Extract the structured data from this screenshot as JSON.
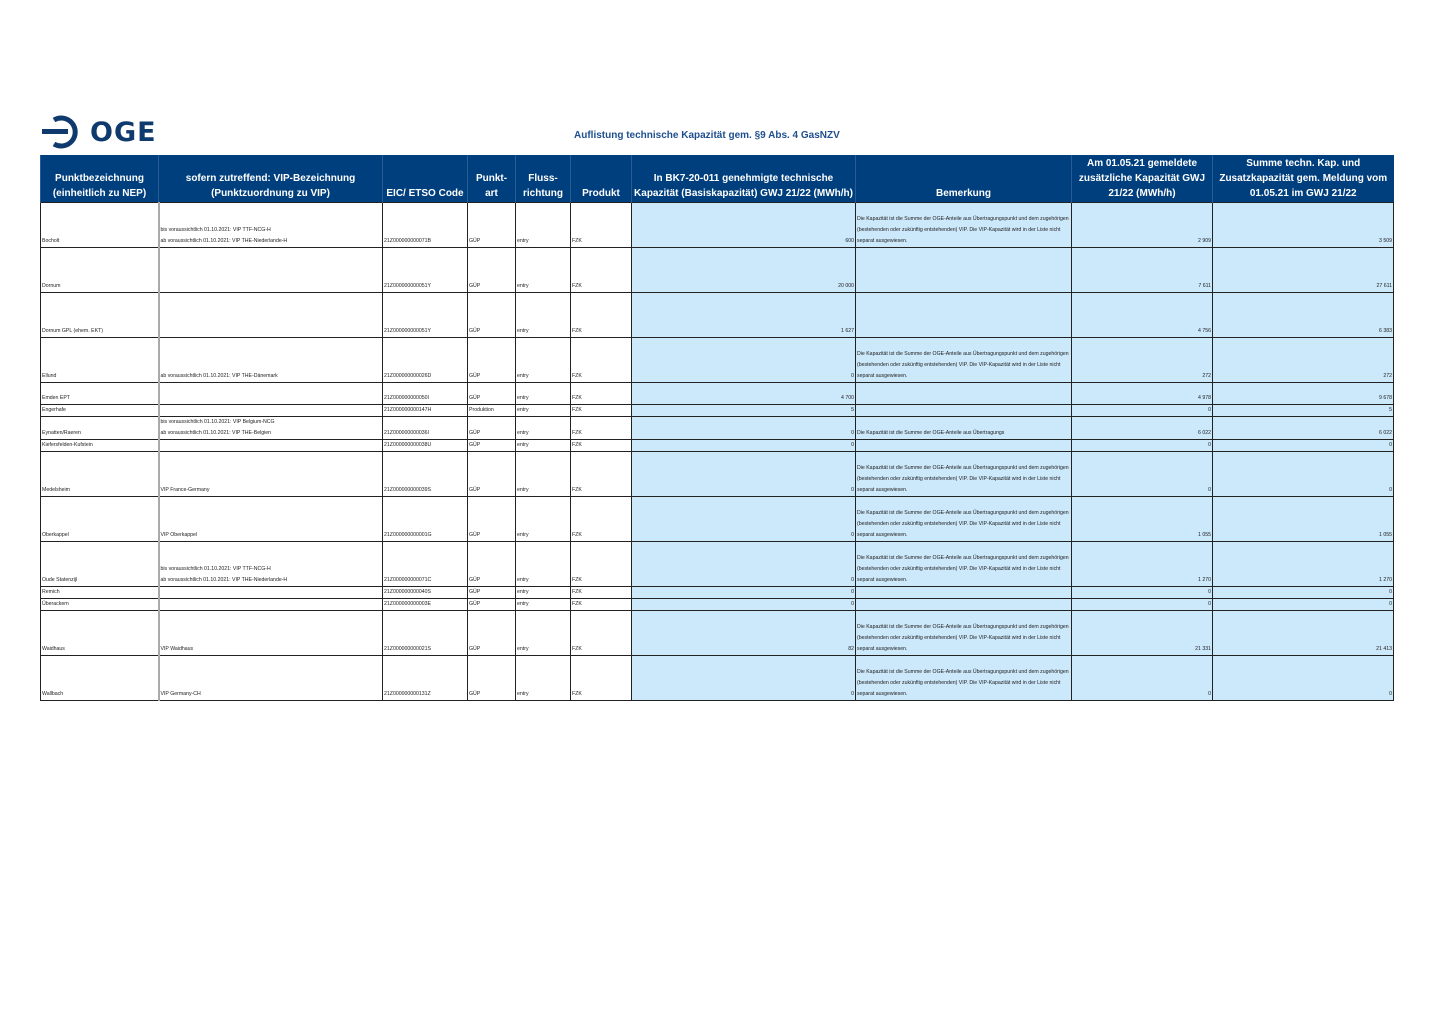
{
  "header": {
    "logo": "OGE",
    "title": "Auflistung technische Kapazität gem. §9 Abs. 4 GasNZV"
  },
  "columns": [
    "Punktbezeichnung (einheitlich zu NEP)",
    "sofern zutreffend: VIP-Bezeichnung (Punktzuordnung zu VIP)",
    "EIC/ ETSO Code",
    "Punkt-art",
    "Fluss-richtung",
    "Produkt",
    "In BK7-20-011 genehmigte technische Kapazität (Basiskapazität) GWJ 21/22 (MWh/h)",
    "Bemerkung",
    "Am 01.05.21 gemeldete zusätzliche Kapazität GWJ 21/22 (MWh/h)",
    "Summe techn. Kap. und Zusatzkapazität gem. Meldung vom 01.05.21 im GWJ 21/22"
  ],
  "remark_full": "Die Kapazität ist die Summe der OGE-Anteile aus Übertragungspunkt und dem zugehörigen (bestehenden oder zukünftig entstehenden) VIP. Die VIP-Kapazität wird in der Liste nicht separat ausgewiesen.",
  "remark_short": "Die Kapazität ist die Summe der OGE-Anteile aus Übertragungs",
  "rows": [
    {
      "name": "Bocholt",
      "vip": "bis voraussichtlich 01.10.2021: VIP TTF-NCG-H\nab voraussichtlich 01.10.2021: VIP THE-Niederlande-H",
      "eic": "21Z000000000071B",
      "art": "GÜP",
      "dir": "entry",
      "prod": "FZK",
      "base": "600",
      "remark": "full",
      "add": "2 909",
      "sum": "3 509",
      "h": 45
    },
    {
      "name": "Dornum",
      "vip": "",
      "eic": "21Z000000000051Y",
      "art": "GÜP",
      "dir": "entry",
      "prod": "FZK",
      "base": "20 000",
      "remark": "",
      "add": "7 611",
      "sum": "27 611",
      "h": 45
    },
    {
      "name": "Dornum GPL (ehem. EKT)",
      "vip": "",
      "eic": "21Z000000000051Y",
      "art": "GÜP",
      "dir": "entry",
      "prod": "FZK",
      "base": "1 627",
      "remark": "",
      "add": "4 756",
      "sum": "6 383",
      "h": 45
    },
    {
      "name": "Ellund",
      "vip": "ab voraussichtlich 01.10.2021: VIP THE-Dänemark",
      "eic": "21Z000000000026D",
      "art": "GÜP",
      "dir": "entry",
      "prod": "FZK",
      "base": "0",
      "remark": "full",
      "add": "272",
      "sum": "272",
      "h": 45
    },
    {
      "name": "Emden EPT",
      "vip": "",
      "eic": "21Z000000000050I",
      "art": "GÜP",
      "dir": "entry",
      "prod": "FZK",
      "base": "4 700",
      "remark": "",
      "add": "4 978",
      "sum": "9 678",
      "h": 22
    },
    {
      "name": "Engerhafe",
      "vip": "",
      "eic": "21Z000000000147H",
      "art": "Produktion",
      "dir": "entry",
      "prod": "FZK",
      "base": "5",
      "remark": "",
      "add": "0",
      "sum": "5",
      "h": 11
    },
    {
      "name": "Eynatten/Raeren",
      "vip": "bis voraussichtlich 01.10.2021: VIP Belgium-NCG\nab voraussichtlich 01.10.2021: VIP THE-Belgien",
      "eic": "21Z000000000036I",
      "art": "GÜP",
      "dir": "entry",
      "prod": "FZK",
      "base": "0",
      "remark": "short",
      "add": "6 022",
      "sum": "6 022",
      "h": 23
    },
    {
      "name": "Kiefersfelden-Kufstein",
      "vip": "",
      "eic": "21Z000000000038U",
      "art": "GÜP",
      "dir": "entry",
      "prod": "FZK",
      "base": "0",
      "remark": "",
      "add": "0",
      "sum": "0",
      "h": 10
    },
    {
      "name": "Medelsheim",
      "vip": "VIP France-Germany",
      "eic": "21Z000000000039S",
      "art": "GÜP",
      "dir": "entry",
      "prod": "FZK",
      "base": "0",
      "remark": "full",
      "add": "0",
      "sum": "0",
      "h": 45
    },
    {
      "name": "Oberkappel",
      "vip": "VIP Oberkappel",
      "eic": "21Z000000000001G",
      "art": "GÜP",
      "dir": "entry",
      "prod": "FZK",
      "base": "0",
      "remark": "full",
      "add": "1 055",
      "sum": "1 055",
      "h": 45
    },
    {
      "name": "Oude Statenzijl",
      "vip": "bis voraussichtlich 01.10.2021: VIP TTF-NCG-H\nab voraussichtlich 01.10.2021: VIP THE-Niederlande-H",
      "eic": "21Z000000000071C",
      "art": "GÜP",
      "dir": "entry",
      "prod": "FZK",
      "base": "0",
      "remark": "full",
      "add": "1 270",
      "sum": "1 270",
      "h": 45
    },
    {
      "name": "Remich",
      "vip": "",
      "eic": "21Z000000000040S",
      "art": "GÜP",
      "dir": "entry",
      "prod": "FZK",
      "base": "0",
      "remark": "",
      "add": "0",
      "sum": "0",
      "h": 11
    },
    {
      "name": "Überackern",
      "vip": "",
      "eic": "21Z000000000003E",
      "art": "GÜP",
      "dir": "entry",
      "prod": "FZK",
      "base": "0",
      "remark": "",
      "add": "0",
      "sum": "0",
      "h": 11
    },
    {
      "name": "Waidhaus",
      "vip": "VIP Waidhaus",
      "eic": "21Z000000000021S",
      "art": "GÜP",
      "dir": "entry",
      "prod": "FZK",
      "base": "82",
      "remark": "full",
      "add": "21 331",
      "sum": "21 413",
      "h": 45
    },
    {
      "name": "Wallbach",
      "vip": "VIP Germany-CH",
      "eic": "21Z000000000131Z",
      "art": "GÜP",
      "dir": "entry",
      "prod": "FZK",
      "base": "0",
      "remark": "full",
      "add": "0",
      "sum": "0",
      "h": 45
    }
  ],
  "colors": {
    "header_bg": "#003f7d",
    "cell_blue": "#cce8fb",
    "logo": "#0f3a6e"
  }
}
